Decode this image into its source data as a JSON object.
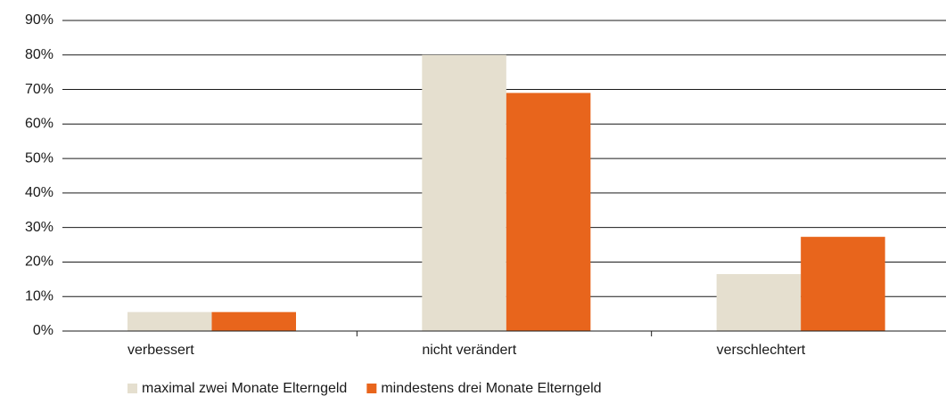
{
  "chart_data": {
    "type": "bar",
    "categories": [
      "verbessert",
      "nicht verändert",
      "verschlechtert"
    ],
    "series": [
      {
        "name": "maximal zwei Monate Elterngeld",
        "color": "#e5dfcf",
        "values": [
          5.5,
          80,
          16.5
        ]
      },
      {
        "name": "mindestens drei Monate Elterngeld",
        "color": "#e8651c",
        "values": [
          5.5,
          69,
          27.3
        ]
      }
    ],
    "ylim": [
      0,
      90
    ],
    "yticks": [
      {
        "value": 0,
        "label": "0%"
      },
      {
        "value": 10,
        "label": "10%"
      },
      {
        "value": 20,
        "label": "20%"
      },
      {
        "value": 30,
        "label": "30%"
      },
      {
        "value": 40,
        "label": "40%"
      },
      {
        "value": 50,
        "label": "50%"
      },
      {
        "value": 60,
        "label": "60%"
      },
      {
        "value": 70,
        "label": "70%"
      },
      {
        "value": 80,
        "label": "80%"
      },
      {
        "value": 90,
        "label": "90%"
      }
    ],
    "grid": true
  }
}
